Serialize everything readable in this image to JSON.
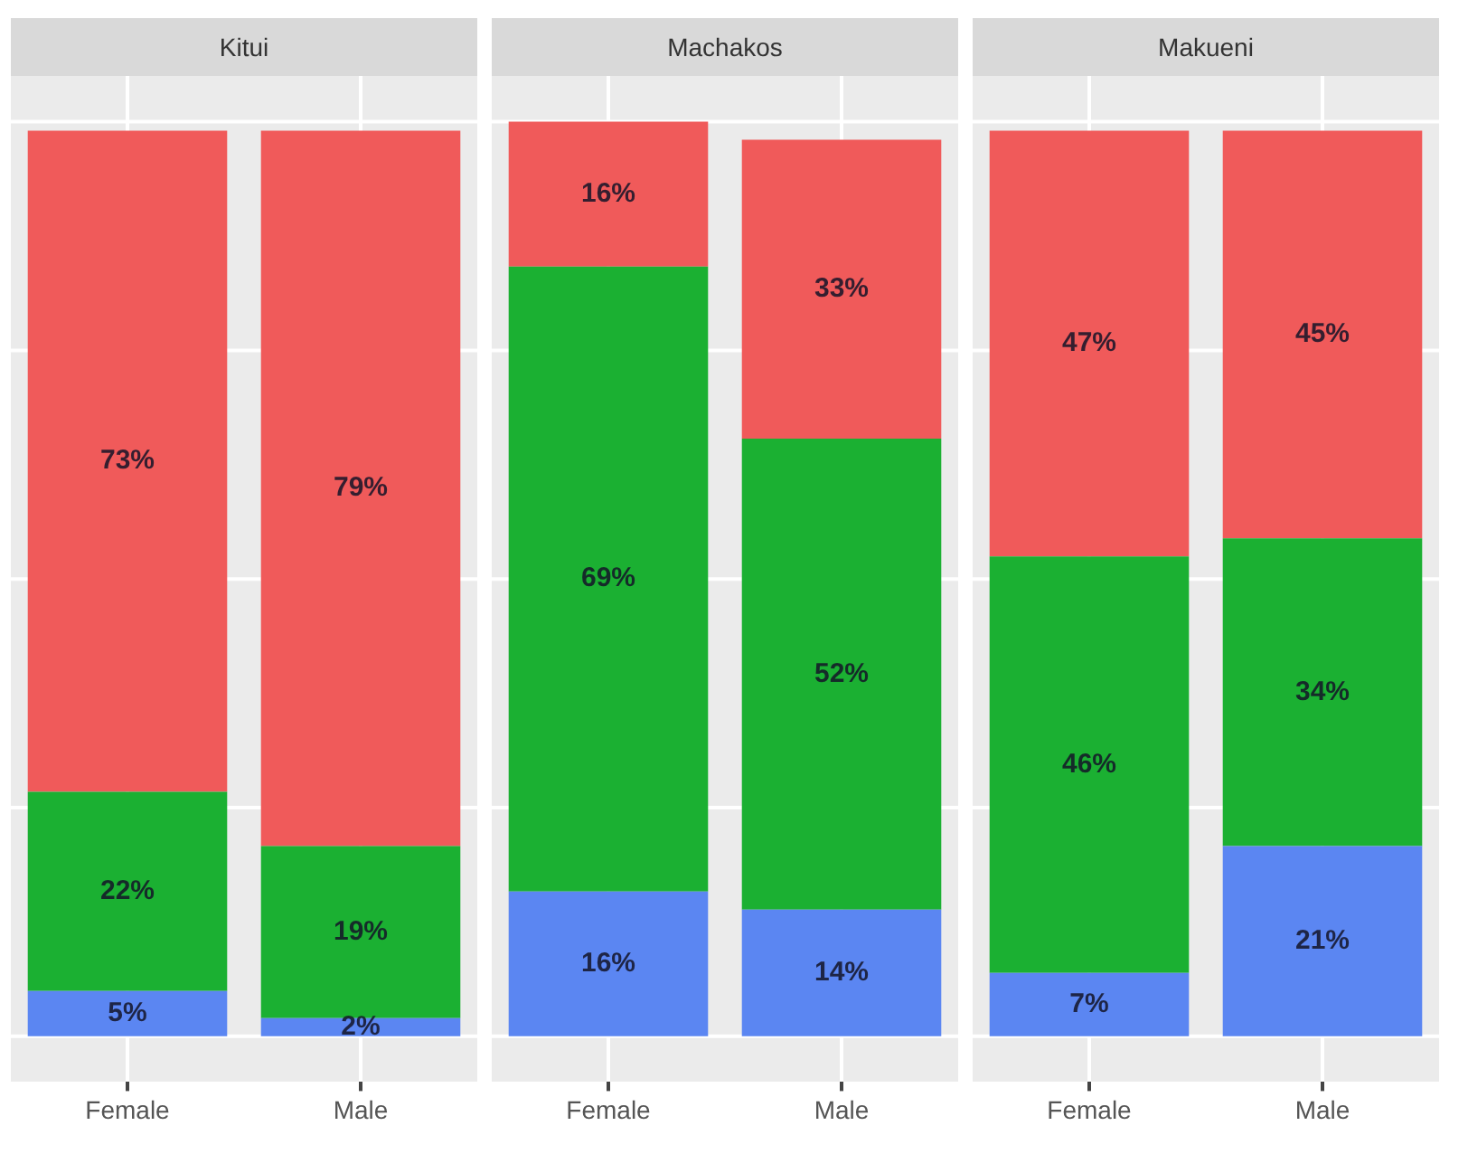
{
  "chart_data": [
    {
      "type": "bar",
      "title": "Kitui",
      "categories": [
        "Female",
        "Male"
      ],
      "stacked": true,
      "grid": true,
      "tick_labels": "x",
      "legend": false,
      "series": [
        {
          "color": "#5b86f2",
          "values": [
            5,
            2
          ],
          "value_labels": [
            "5%",
            "2%"
          ]
        },
        {
          "color": "#1bb032",
          "values": [
            22,
            19
          ],
          "value_labels": [
            "22%",
            "19%"
          ]
        },
        {
          "color": "#f05a5a",
          "values": [
            73,
            79
          ],
          "value_labels": [
            "73%",
            "79%"
          ]
        }
      ]
    },
    {
      "type": "bar",
      "title": "Machakos",
      "categories": [
        "Female",
        "Male"
      ],
      "stacked": true,
      "grid": true,
      "tick_labels": "x",
      "legend": false,
      "series": [
        {
          "color": "#5b86f2",
          "values": [
            16,
            14
          ],
          "value_labels": [
            "16%",
            "14%"
          ]
        },
        {
          "color": "#1bb032",
          "values": [
            69,
            52
          ],
          "value_labels": [
            "69%",
            "52%"
          ]
        },
        {
          "color": "#f05a5a",
          "values": [
            16,
            33
          ],
          "value_labels": [
            "16%",
            "33%"
          ]
        }
      ]
    },
    {
      "type": "bar",
      "title": "Makueni",
      "categories": [
        "Female",
        "Male"
      ],
      "stacked": true,
      "grid": true,
      "tick_labels": "x",
      "legend": false,
      "series": [
        {
          "color": "#5b86f2",
          "values": [
            7,
            21
          ],
          "value_labels": [
            "7%",
            "21%"
          ]
        },
        {
          "color": "#1bb032",
          "values": [
            46,
            34
          ],
          "value_labels": [
            "46%",
            "34%"
          ]
        },
        {
          "color": "#f05a5a",
          "values": [
            47,
            45
          ],
          "value_labels": [
            "47%",
            "45%"
          ]
        }
      ]
    }
  ]
}
